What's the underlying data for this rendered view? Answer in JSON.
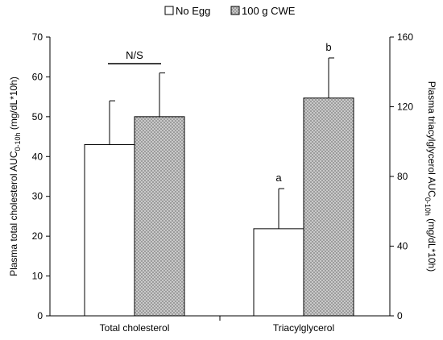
{
  "chart_data": {
    "type": "bar",
    "categories": [
      "Total cholesterol",
      "Triacylglycerol"
    ],
    "series": [
      {
        "name": "No Egg",
        "fill": "#ffffff",
        "pattern": "none"
      },
      {
        "name": "100 g CWE",
        "fill": "#c8c8c8",
        "pattern": "crosshatch"
      }
    ],
    "groups": [
      {
        "category": "Total cholesterol",
        "axis": "left",
        "values": [
          43,
          50
        ],
        "errors": [
          11,
          11
        ],
        "annotation": {
          "text": "N/S",
          "type": "bracket"
        }
      },
      {
        "category": "Triacylglycerol",
        "axis": "right",
        "values": [
          50,
          125
        ],
        "errors": [
          23,
          23
        ],
        "letters": [
          "a",
          "b"
        ]
      }
    ],
    "y_left": {
      "label_prefix": "Plasma total cholesterol AUC",
      "label_sub": "0-10h",
      "label_suffix": " (mg/dL*10h)",
      "range": [
        0,
        70
      ],
      "ticks": [
        0,
        10,
        20,
        30,
        40,
        50,
        60,
        70
      ]
    },
    "y_right": {
      "label_prefix": "Plasma triacylglycerol AUC",
      "label_sub": "0-10h",
      "label_suffix": " (mg/dL*10h)",
      "range": [
        0,
        160
      ],
      "ticks": [
        0,
        40,
        80,
        120,
        160
      ]
    },
    "legend": {
      "position": "top-center"
    },
    "grid": false
  }
}
